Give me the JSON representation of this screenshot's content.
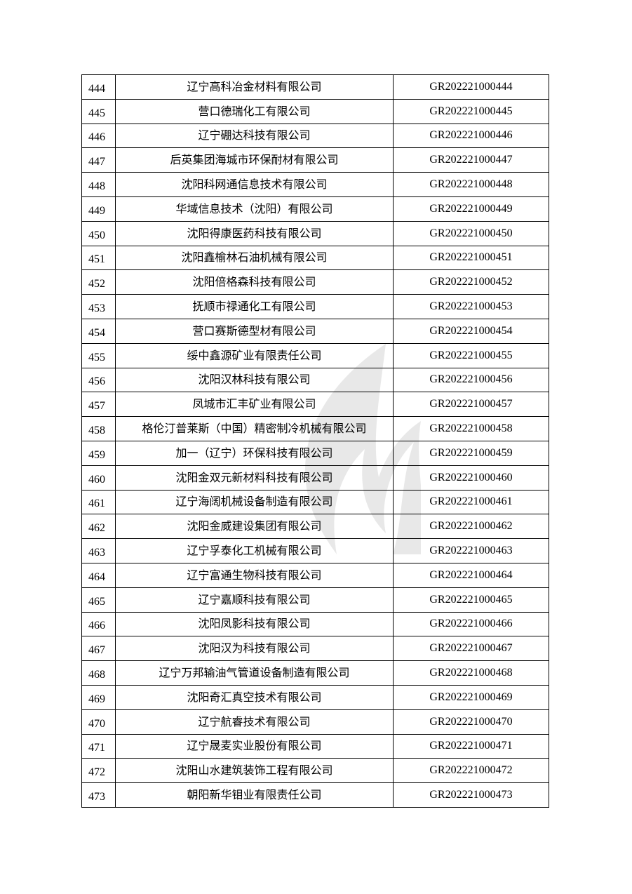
{
  "rows": [
    {
      "no": "444",
      "name": "辽宁高科冶金材料有限公司",
      "code": "GR202221000444"
    },
    {
      "no": "445",
      "name": "营口德瑞化工有限公司",
      "code": "GR202221000445"
    },
    {
      "no": "446",
      "name": "辽宁硼达科技有限公司",
      "code": "GR202221000446"
    },
    {
      "no": "447",
      "name": "后英集团海城市环保耐材有限公司",
      "code": "GR202221000447"
    },
    {
      "no": "448",
      "name": "沈阳科网通信息技术有限公司",
      "code": "GR202221000448"
    },
    {
      "no": "449",
      "name": "华域信息技术（沈阳）有限公司",
      "code": "GR202221000449"
    },
    {
      "no": "450",
      "name": "沈阳得康医药科技有限公司",
      "code": "GR202221000450"
    },
    {
      "no": "451",
      "name": "沈阳鑫榆林石油机械有限公司",
      "code": "GR202221000451"
    },
    {
      "no": "452",
      "name": "沈阳倍格森科技有限公司",
      "code": "GR202221000452"
    },
    {
      "no": "453",
      "name": "抚顺市禄通化工有限公司",
      "code": "GR202221000453"
    },
    {
      "no": "454",
      "name": "营口赛斯德型材有限公司",
      "code": "GR202221000454"
    },
    {
      "no": "455",
      "name": "绥中鑫源矿业有限责任公司",
      "code": "GR202221000455"
    },
    {
      "no": "456",
      "name": "沈阳汉林科技有限公司",
      "code": "GR202221000456"
    },
    {
      "no": "457",
      "name": "凤城市汇丰矿业有限公司",
      "code": "GR202221000457"
    },
    {
      "no": "458",
      "name": "格伦汀普莱斯（中国）精密制冷机械有限公司",
      "code": "GR202221000458"
    },
    {
      "no": "459",
      "name": "加一（辽宁）环保科技有限公司",
      "code": "GR202221000459"
    },
    {
      "no": "460",
      "name": "沈阳金双元新材料科技有限公司",
      "code": "GR202221000460"
    },
    {
      "no": "461",
      "name": "辽宁海阔机械设备制造有限公司",
      "code": "GR202221000461"
    },
    {
      "no": "462",
      "name": "沈阳金威建设集团有限公司",
      "code": "GR202221000462"
    },
    {
      "no": "463",
      "name": "辽宁孚泰化工机械有限公司",
      "code": "GR202221000463"
    },
    {
      "no": "464",
      "name": "辽宁富通生物科技有限公司",
      "code": "GR202221000464"
    },
    {
      "no": "465",
      "name": "辽宁嘉顺科技有限公司",
      "code": "GR202221000465"
    },
    {
      "no": "466",
      "name": "沈阳凤影科技有限公司",
      "code": "GR202221000466"
    },
    {
      "no": "467",
      "name": "沈阳汉为科技有限公司",
      "code": "GR202221000467"
    },
    {
      "no": "468",
      "name": "辽宁万邦输油气管道设备制造有限公司",
      "code": "GR202221000468"
    },
    {
      "no": "469",
      "name": "沈阳奇汇真空技术有限公司",
      "code": "GR202221000469"
    },
    {
      "no": "470",
      "name": "辽宁航睿技术有限公司",
      "code": "GR202221000470"
    },
    {
      "no": "471",
      "name": "辽宁晟麦实业股份有限公司",
      "code": "GR202221000471"
    },
    {
      "no": "472",
      "name": "沈阳山水建筑装饰工程有限公司",
      "code": "GR202221000472"
    },
    {
      "no": "473",
      "name": "朝阳新华钼业有限责任公司",
      "code": "GR202221000473"
    }
  ]
}
